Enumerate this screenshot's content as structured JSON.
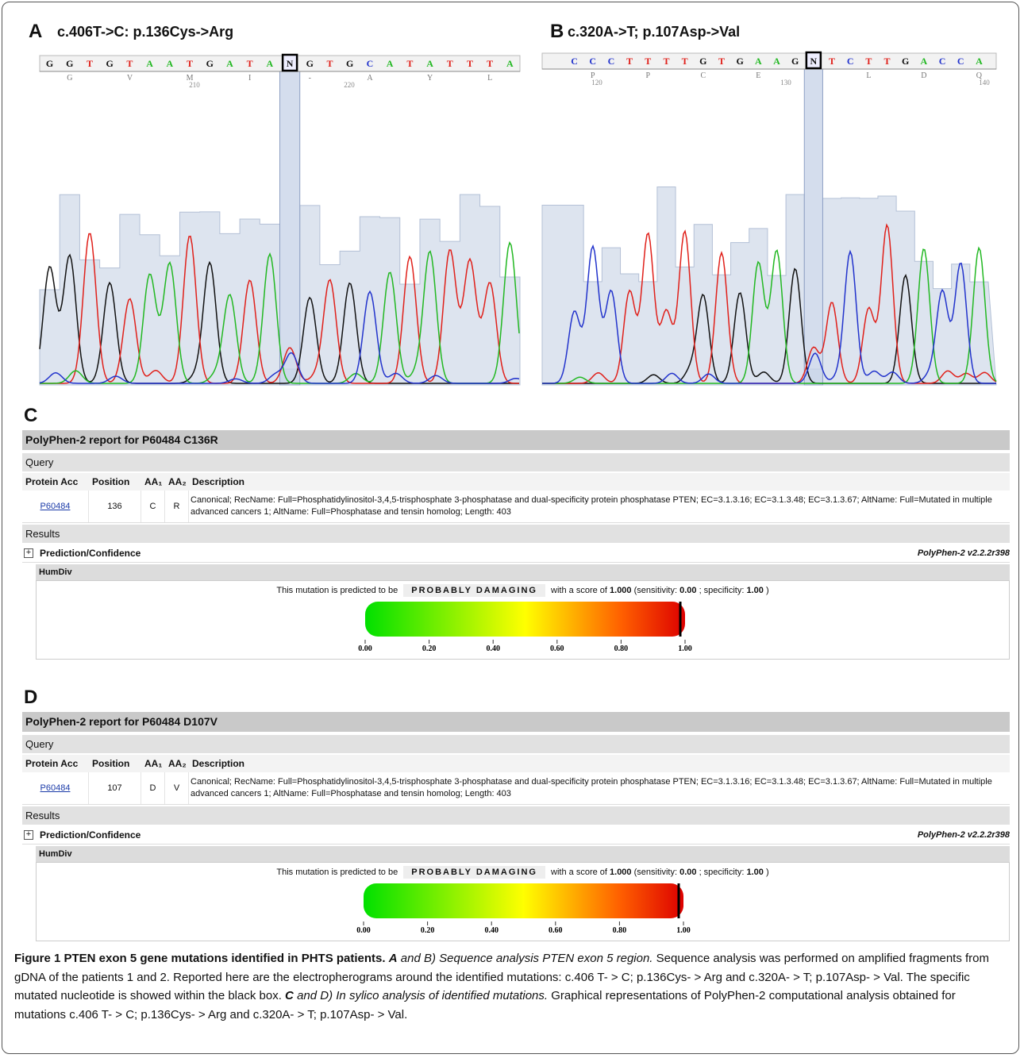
{
  "panels": [
    {
      "label": "A",
      "title": "c.406T->C: p.136Cys->Arg",
      "bases": [
        "G",
        "G",
        "T",
        "G",
        "T",
        "A",
        "A",
        "T",
        "G",
        "A",
        "T",
        "A",
        "N",
        "G",
        "T",
        "G",
        "C",
        "A",
        "T",
        "A",
        "T",
        "T",
        "T",
        "A"
      ],
      "amino_acids": [
        "G",
        "V",
        "M",
        "I",
        "-",
        "A",
        "Y",
        "L"
      ],
      "positions": [
        "210",
        "220"
      ]
    },
    {
      "label": "B",
      "title": "c.320A->T; p.107Asp->Val",
      "bases": [
        "C",
        "C",
        "C",
        "T",
        "T",
        "T",
        "T",
        "G",
        "T",
        "G",
        "A",
        "A",
        "G",
        "N",
        "T",
        "C",
        "T",
        "T",
        "G",
        "A",
        "C",
        "C",
        "A"
      ],
      "amino_acids": [
        "P",
        "P",
        "C",
        "E",
        "L",
        "D",
        "Q"
      ],
      "positions": [
        "120",
        "130",
        "140"
      ]
    }
  ],
  "reports": [
    {
      "label": "C",
      "title": "PolyPhen-2 report for P60484 C136R",
      "query": "Query",
      "headers": [
        "Protein Acc",
        "Position",
        "AA₁",
        "AA₂",
        "Description"
      ],
      "row": [
        "P60484",
        "136",
        "C",
        "R",
        "Canonical; RecName: Full=Phosphatidylinositol-3,4,5-trisphosphate 3-phosphatase and dual-specificity protein phosphatase PTEN; EC=3.1.3.16; EC=3.1.3.48; EC=3.1.3.67; AltName: Full=Mutated in multiple advanced cancers 1; AltName: Full=Phosphatase and tensin homolog; Length: 403"
      ],
      "results": "Results",
      "prediction": "Prediction/Confidence",
      "version": "PolyPhen-2 v2.2.2r398",
      "humdiv": "HumDiv",
      "sentence": [
        {
          "text": "This mutation is predicted to be",
          "style": "normal"
        },
        {
          "text": "PROBABLY DAMAGING",
          "style": "badge"
        },
        {
          "text": "with a score of",
          "style": "normal"
        },
        {
          "text": "1.000",
          "style": "bold"
        },
        {
          "text": "(sensitivity:",
          "style": "normal"
        },
        {
          "text": "0.00",
          "style": "bold"
        },
        {
          "text": "; specificity:",
          "style": "normal"
        },
        {
          "text": "1.00",
          "style": "bold"
        },
        {
          "text": ")",
          "style": "normal"
        }
      ],
      "score_index": 3,
      "scale_ticks": [
        {
          "value": 0,
          "label": "0.00"
        },
        {
          "value": 0.2,
          "label": "0.20"
        },
        {
          "value": 0.4,
          "label": "0.40"
        },
        {
          "value": 0.6,
          "label": "0.60"
        },
        {
          "value": 0.8,
          "label": "0.80"
        },
        {
          "value": 1,
          "label": "1.00"
        }
      ]
    },
    {
      "label": "D",
      "title": "PolyPhen-2 report for P60484 D107V",
      "query": "Query",
      "headers": [
        "Protein Acc",
        "Position",
        "AA₁",
        "AA₂",
        "Description"
      ],
      "row": [
        "P60484",
        "107",
        "D",
        "V",
        "Canonical; RecName: Full=Phosphatidylinositol-3,4,5-trisphosphate 3-phosphatase and dual-specificity protein phosphatase PTEN; EC=3.1.3.16; EC=3.1.3.48; EC=3.1.3.67; AltName: Full=Mutated in multiple advanced cancers 1; AltName: Full=Phosphatase and tensin homolog; Length: 403"
      ],
      "results": "Results",
      "prediction": "Prediction/Confidence",
      "version": "PolyPhen-2 v2.2.2r398",
      "humdiv": "HumDiv",
      "sentence": [
        {
          "text": "This mutation is predicted to be",
          "style": "normal"
        },
        {
          "text": "PROBABLY DAMAGING",
          "style": "badge"
        },
        {
          "text": "with a score of",
          "style": "normal"
        },
        {
          "text": "1.000",
          "style": "bold"
        },
        {
          "text": "(sensitivity:",
          "style": "normal"
        },
        {
          "text": "0.00",
          "style": "bold"
        },
        {
          "text": "; specificity:",
          "style": "normal"
        },
        {
          "text": "1.00",
          "style": "bold"
        },
        {
          "text": ")",
          "style": "normal"
        }
      ],
      "score_index": 3,
      "scale_ticks": [
        {
          "value": 0,
          "label": "0.00"
        },
        {
          "value": 0.2,
          "label": "0.20"
        },
        {
          "value": 0.4,
          "label": "0.40"
        },
        {
          "value": 0.6,
          "label": "0.60"
        },
        {
          "value": 0.8,
          "label": "0.80"
        },
        {
          "value": 1,
          "label": "1.00"
        }
      ]
    }
  ],
  "caption": [
    {
      "text": "Figure 1 PTEN exon 5 gene mutations identified in PHTS patients.",
      "style": "bold"
    },
    {
      "text": "A",
      "style": "bold-italic"
    },
    {
      "text": "and B)",
      "style": "italic"
    },
    {
      "text": "Sequence analysis PTEN exon 5 region.",
      "style": "italic"
    },
    {
      "text": "Sequence analysis was performed on amplified fragments from gDNA of the patients 1 and 2. Reported here are the electropherograms around the identified mutations: c.406 T- > C; p.136Cys- > Arg and c.320A- > T; p.107Asp- > Val. The specific mutated nucleotide is showed within the black box.",
      "style": "normal"
    },
    {
      "text": "C",
      "style": "bold-italic"
    },
    {
      "text": "and D)",
      "style": "italic"
    },
    {
      "text": "In sylico analysis of identified mutations.",
      "style": "italic"
    },
    {
      "text": "Graphical representations of PolyPhen-2 computational analysis obtained for mutations c.406 T- > C; p.136Cys- > Arg and c.320A- > T; p.107Asp- > Val.",
      "style": "normal"
    }
  ]
}
